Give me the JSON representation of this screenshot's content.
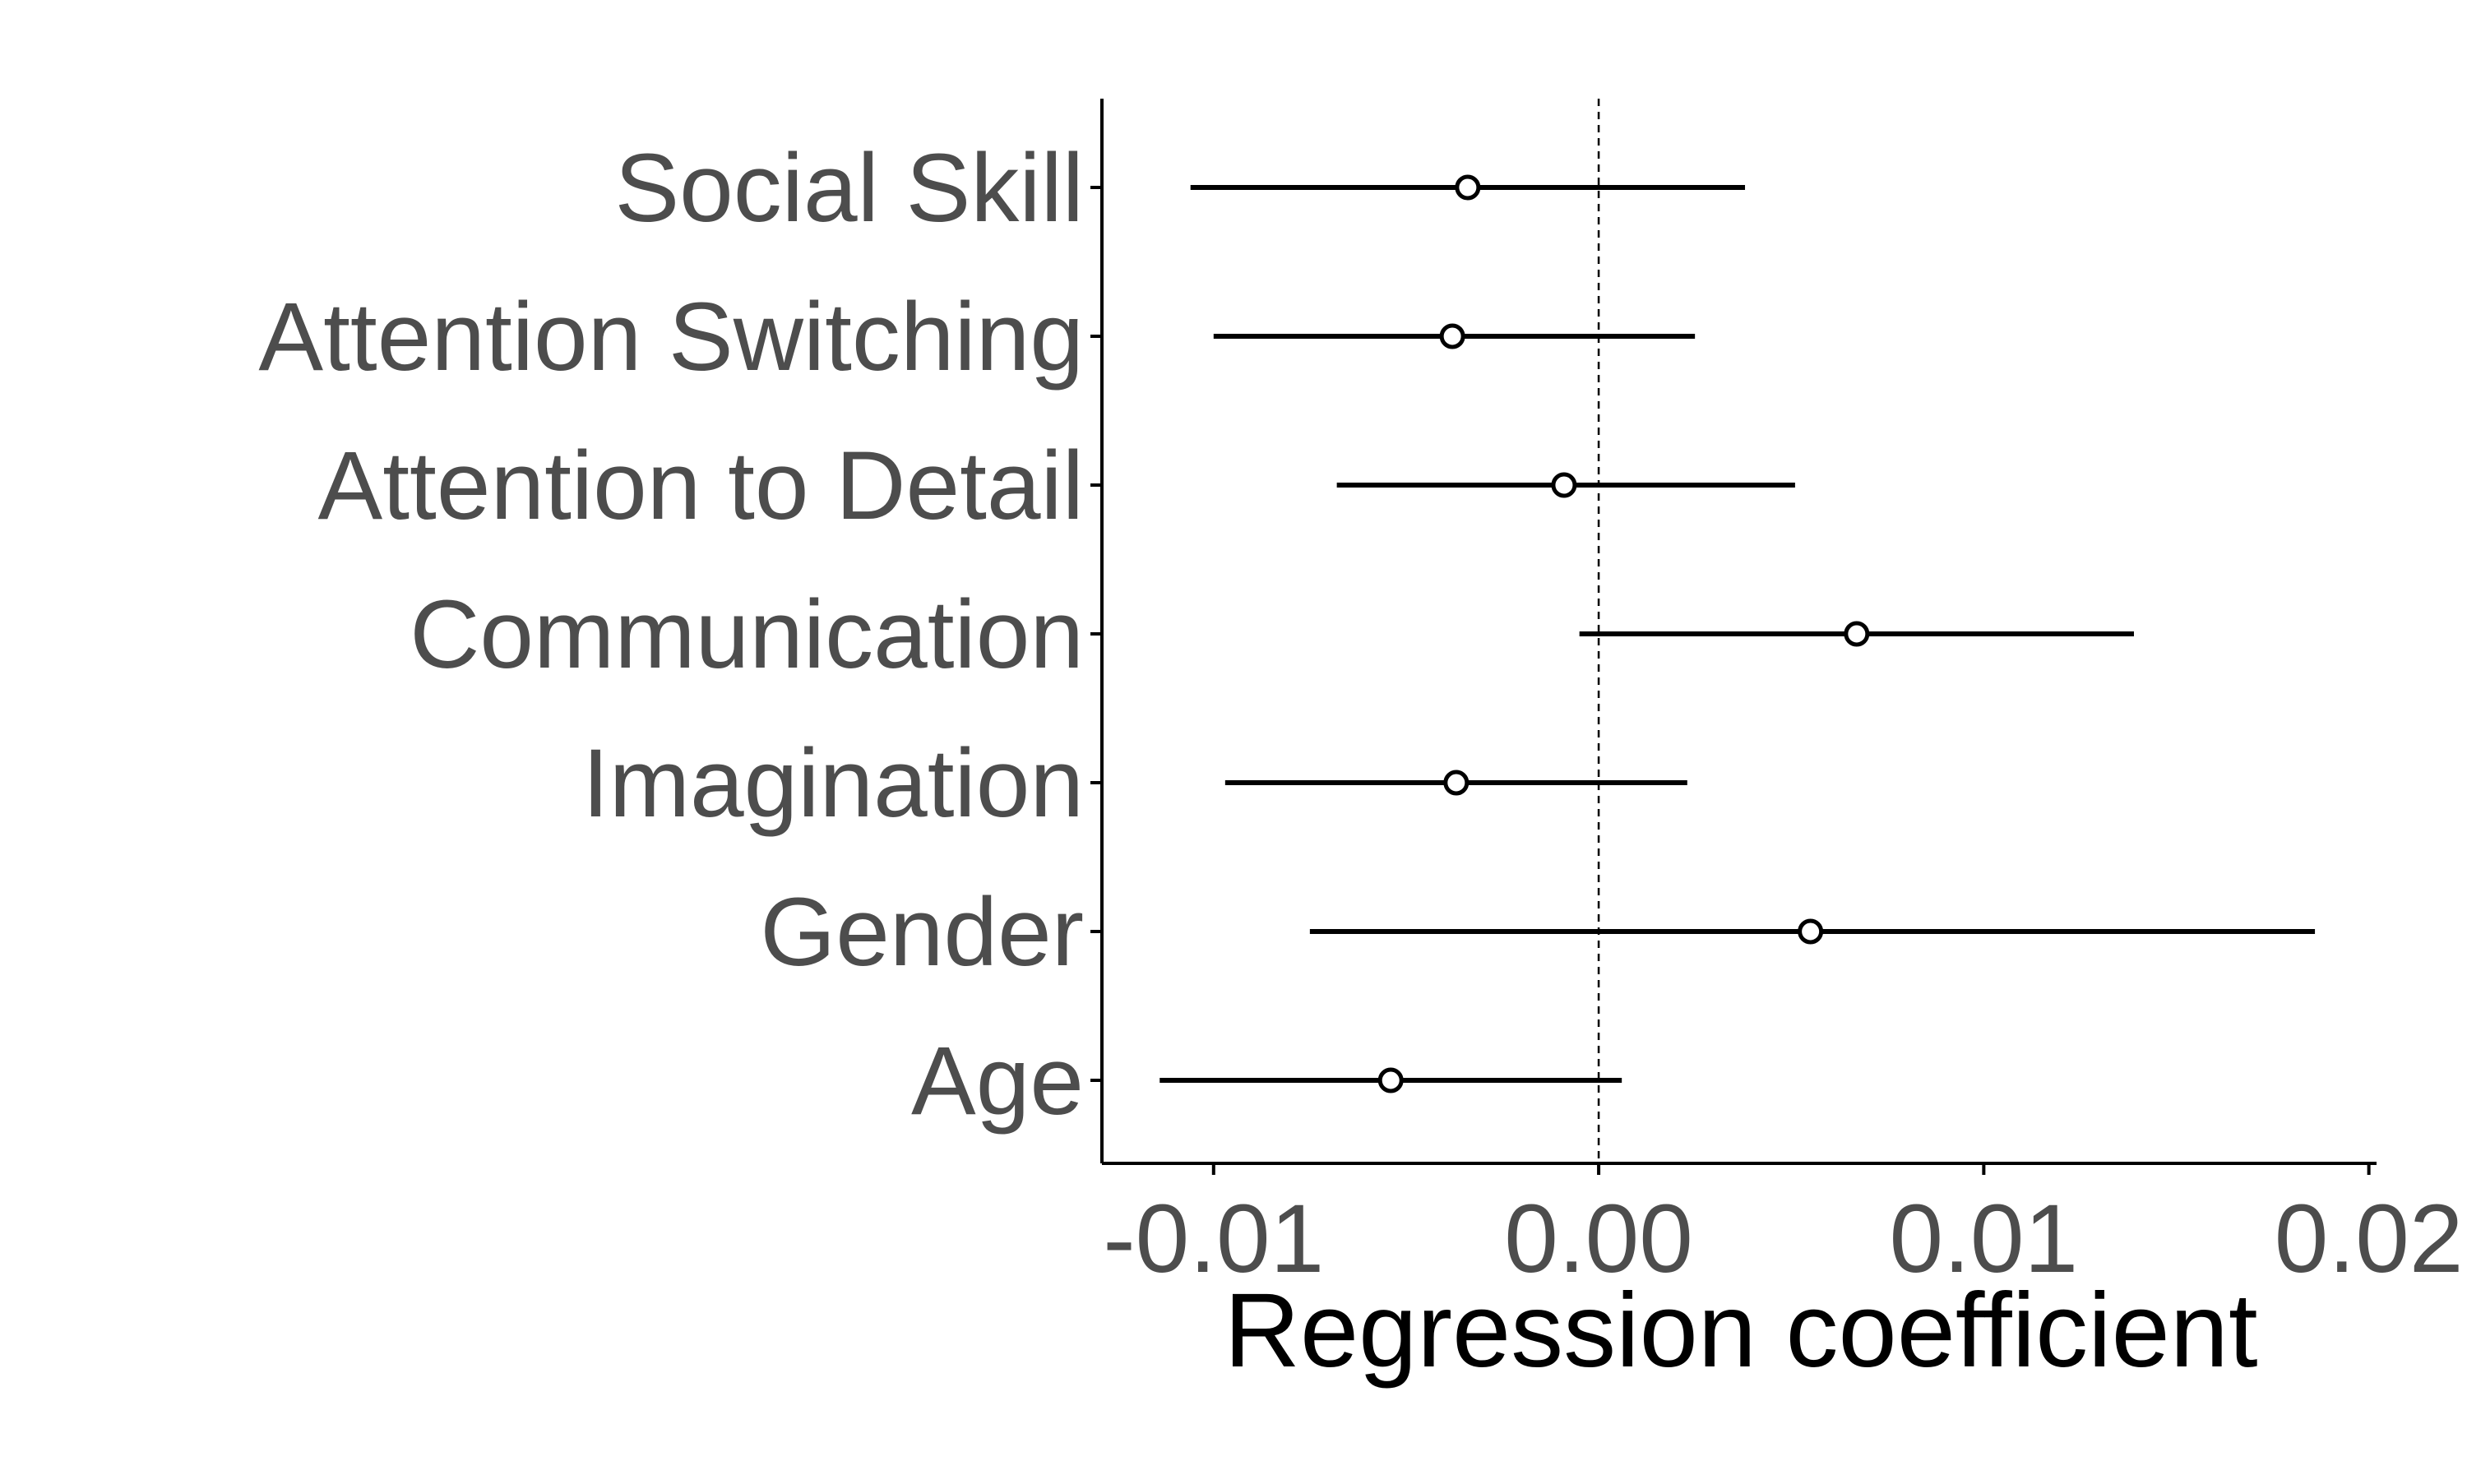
{
  "chart_data": {
    "type": "scatter",
    "subtype": "coefficient-plot",
    "xlabel": "Regression coefficient",
    "ylabel": "",
    "xlim": [
      -0.0129,
      0.0202
    ],
    "xticks": [
      -0.01,
      0.0,
      0.01,
      0.02
    ],
    "xtick_labels": [
      "-0.01",
      "0.00",
      "0.01",
      "0.02"
    ],
    "reference_line": 0,
    "grid": false,
    "legend": "none",
    "categories": [
      "Social Skill",
      "Attention Switching",
      "Attention to Detail",
      "Communication",
      "Imagination",
      "Gender",
      "Age"
    ],
    "series": [
      {
        "estimate": [
          -0.0034,
          -0.0038,
          -0.0009,
          0.0067,
          -0.0037,
          0.0055,
          -0.0054
        ],
        "lower": [
          -0.0106,
          -0.01,
          -0.0068,
          -0.0005,
          -0.0097,
          -0.0075,
          -0.0114
        ],
        "upper": [
          0.0038,
          0.0025,
          0.0051,
          0.0139,
          0.0023,
          0.0186,
          0.0006
        ]
      }
    ],
    "colors": {
      "line": "#000000",
      "point_fill": "#ffffff",
      "text": "#4d4d4d",
      "title": "#000000"
    }
  }
}
